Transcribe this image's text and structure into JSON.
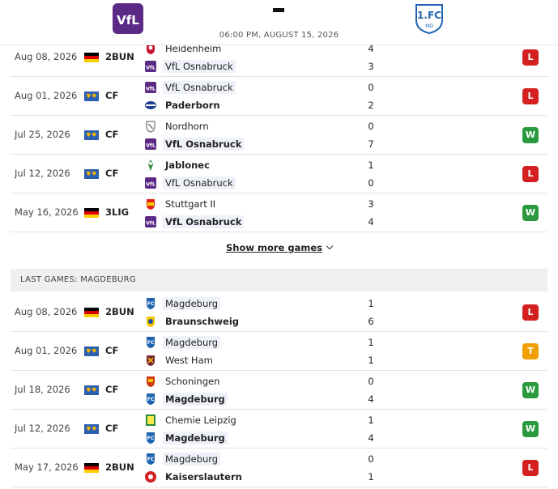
{
  "header": {
    "time": "06:00 PM, AUGUST 15, 2026",
    "score_dash": "-",
    "home_logo_icon": "vfl-osnabruck-crest-icon",
    "away_logo_icon": "magdeburg-crest-icon"
  },
  "colors": {
    "win": "#2b9a3f",
    "loss": "#d42020",
    "tie": "#f0a000",
    "highlight": "#eef1f7",
    "section_bg": "#efefef"
  },
  "osnabruck_games": [
    {
      "date": "Aug 08, 2026",
      "comp": "2BUN",
      "flag": "germany-flag-icon",
      "team1": {
        "name": "Heidenheim",
        "crest": "heidenheim-crest-icon",
        "bold": false,
        "hl": false
      },
      "team2": {
        "name": "VfL Osnabruck",
        "crest": "vfl-osnabruck-crest-icon",
        "bold": false,
        "hl": true
      },
      "score1": "4",
      "score2": "3",
      "result": "L"
    },
    {
      "date": "Aug 01, 2026",
      "comp": "CF",
      "flag": "world-flag-icon",
      "team1": {
        "name": "VfL Osnabruck",
        "crest": "vfl-osnabruck-crest-icon",
        "bold": false,
        "hl": true
      },
      "team2": {
        "name": "Paderborn",
        "crest": "paderborn-crest-icon",
        "bold": true,
        "hl": false
      },
      "score1": "0",
      "score2": "2",
      "result": "L"
    },
    {
      "date": "Jul 25, 2026",
      "comp": "CF",
      "flag": "world-flag-icon",
      "team1": {
        "name": "Nordhorn",
        "crest": "nordhorn-crest-icon",
        "bold": false,
        "hl": false
      },
      "team2": {
        "name": "VfL Osnabruck",
        "crest": "vfl-osnabruck-crest-icon",
        "bold": true,
        "hl": true
      },
      "score1": "0",
      "score2": "7",
      "result": "W"
    },
    {
      "date": "Jul 12, 2026",
      "comp": "CF",
      "flag": "world-flag-icon",
      "team1": {
        "name": "Jablonec",
        "crest": "jablonec-crest-icon",
        "bold": true,
        "hl": false
      },
      "team2": {
        "name": "VfL Osnabruck",
        "crest": "vfl-osnabruck-crest-icon",
        "bold": false,
        "hl": true
      },
      "score1": "1",
      "score2": "0",
      "result": "L"
    },
    {
      "date": "May 16, 2026",
      "comp": "3LIG",
      "flag": "germany-flag-icon",
      "team1": {
        "name": "Stuttgart II",
        "crest": "stuttgart-crest-icon",
        "bold": false,
        "hl": false
      },
      "team2": {
        "name": "VfL Osnabruck",
        "crest": "vfl-osnabruck-crest-icon",
        "bold": true,
        "hl": true
      },
      "score1": "3",
      "score2": "4",
      "result": "W"
    }
  ],
  "show_more_label": "Show more games",
  "magdeburg_section_title": "LAST GAMES: MAGDEBURG",
  "magdeburg_games": [
    {
      "date": "Aug 08, 2026",
      "comp": "2BUN",
      "flag": "germany-flag-icon",
      "team1": {
        "name": "Magdeburg",
        "crest": "magdeburg-crest-icon",
        "bold": false,
        "hl": true
      },
      "team2": {
        "name": "Braunschweig",
        "crest": "braunschweig-crest-icon",
        "bold": true,
        "hl": false
      },
      "score1": "1",
      "score2": "6",
      "result": "L"
    },
    {
      "date": "Aug 01, 2026",
      "comp": "CF",
      "flag": "world-flag-icon",
      "team1": {
        "name": "Magdeburg",
        "crest": "magdeburg-crest-icon",
        "bold": false,
        "hl": true
      },
      "team2": {
        "name": "West Ham",
        "crest": "west-ham-crest-icon",
        "bold": false,
        "hl": false
      },
      "score1": "1",
      "score2": "1",
      "result": "T"
    },
    {
      "date": "Jul 18, 2026",
      "comp": "CF",
      "flag": "world-flag-icon",
      "team1": {
        "name": "Schoningen",
        "crest": "schoningen-crest-icon",
        "bold": false,
        "hl": false
      },
      "team2": {
        "name": "Magdeburg",
        "crest": "magdeburg-crest-icon",
        "bold": true,
        "hl": true
      },
      "score1": "0",
      "score2": "4",
      "result": "W"
    },
    {
      "date": "Jul 12, 2026",
      "comp": "CF",
      "flag": "world-flag-icon",
      "team1": {
        "name": "Chemie Leipzig",
        "crest": "chemie-leipzig-crest-icon",
        "bold": false,
        "hl": false
      },
      "team2": {
        "name": "Magdeburg",
        "crest": "magdeburg-crest-icon",
        "bold": true,
        "hl": true
      },
      "score1": "1",
      "score2": "4",
      "result": "W"
    },
    {
      "date": "May 17, 2026",
      "comp": "2BUN",
      "flag": "germany-flag-icon",
      "team1": {
        "name": "Magdeburg",
        "crest": "magdeburg-crest-icon",
        "bold": false,
        "hl": true
      },
      "team2": {
        "name": "Kaiserslautern",
        "crest": "kaiserslautern-crest-icon",
        "bold": true,
        "hl": false
      },
      "score1": "0",
      "score2": "1",
      "result": "L"
    }
  ]
}
